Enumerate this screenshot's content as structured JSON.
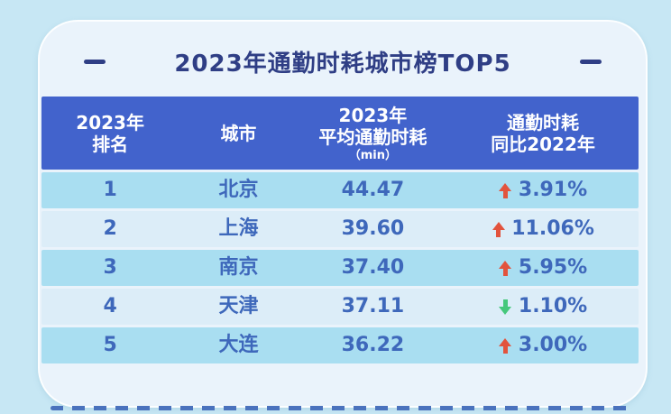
{
  "title": {
    "text": "2023年通勤时耗城市榜TOP5"
  },
  "table": {
    "header": {
      "columns": [
        {
          "line1": "2023年",
          "line2": "排名"
        },
        {
          "line1": "城市"
        },
        {
          "line1": "2023年",
          "line2": "平均通勤时耗",
          "line3": "（min）"
        },
        {
          "line1": "通勤时耗",
          "line2": "同比2022年"
        }
      ]
    },
    "rows": [
      {
        "rank": "1",
        "city": "北京",
        "value": "44.47",
        "change": "3.91%",
        "direction": "up"
      },
      {
        "rank": "2",
        "city": "上海",
        "value": "39.60",
        "change": "11.06%",
        "direction": "up"
      },
      {
        "rank": "3",
        "city": "南京",
        "value": "37.40",
        "change": "5.95%",
        "direction": "up"
      },
      {
        "rank": "4",
        "city": "天津",
        "value": "37.11",
        "change": "1.10%",
        "direction": "down"
      },
      {
        "rank": "5",
        "city": "大连",
        "value": "36.22",
        "change": "3.00%",
        "direction": "up"
      }
    ]
  },
  "chart_data": {
    "type": "table",
    "title": "2023年通勤时耗城市榜TOP5",
    "columns": [
      "2023年排名",
      "城市",
      "2023年平均通勤时耗（min）",
      "通勤时耗同比2022年"
    ],
    "rows": [
      [
        1,
        "北京",
        44.47,
        "+3.91%"
      ],
      [
        2,
        "上海",
        39.6,
        "+11.06%"
      ],
      [
        3,
        "南京",
        37.4,
        "+5.95%"
      ],
      [
        4,
        "天津",
        37.11,
        "-1.10%"
      ],
      [
        5,
        "大连",
        36.22,
        "+3.00%"
      ]
    ],
    "notes": "red up-arrow = increase vs 2022, green down-arrow = decrease vs 2022"
  },
  "colors": {
    "page_bg": "#c7e7f4",
    "card_bg": "#eaf3fb",
    "header_bg": "#4263cc",
    "header_text": "#ffffff",
    "row_odd": "#a9def1",
    "row_even": "#dcedf8",
    "title": "#2f3e85",
    "data_text": "#3e68bb",
    "up": "#e2533d",
    "down": "#45c87b",
    "dash_line": "#4a72bd"
  }
}
